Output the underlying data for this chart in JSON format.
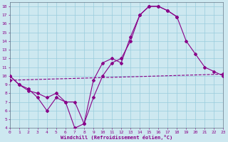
{
  "bg_color": "#cde8f0",
  "grid_color": "#99ccdd",
  "line_color": "#880088",
  "xlabel": "Windchill (Refroidissement éolien,°C)",
  "xlim": [
    0,
    23
  ],
  "ylim": [
    4,
    18.5
  ],
  "xticks": [
    0,
    1,
    2,
    3,
    4,
    5,
    6,
    7,
    8,
    9,
    10,
    11,
    12,
    13,
    14,
    15,
    16,
    17,
    18,
    19,
    20,
    21,
    22,
    23
  ],
  "yticks": [
    4,
    5,
    6,
    7,
    8,
    9,
    10,
    11,
    12,
    13,
    14,
    15,
    16,
    17,
    18
  ],
  "line1_x": [
    0,
    1,
    2,
    3,
    4,
    5,
    6,
    7,
    8,
    9,
    10,
    11,
    12,
    13,
    14,
    15,
    16,
    17,
    18
  ],
  "line1_y": [
    10,
    9,
    8.5,
    7.5,
    6,
    7.5,
    7,
    4,
    4.5,
    9.5,
    11.5,
    12,
    11.5,
    14.5,
    17,
    18,
    18,
    17.5,
    16.8
  ],
  "line2_x": [
    0,
    1,
    2,
    3,
    4,
    5,
    6,
    7,
    8,
    9,
    10,
    11,
    12,
    13,
    14,
    15,
    16,
    17,
    18,
    19,
    20,
    21,
    22,
    23
  ],
  "line2_y": [
    10,
    9.0,
    8.3,
    8.0,
    7.5,
    8.0,
    7.0,
    7.0,
    4.5,
    7.5,
    10,
    11.5,
    12,
    14,
    17,
    18,
    18,
    17.5,
    16.8,
    14,
    12.5,
    11,
    10.5,
    10
  ],
  "line3_x": [
    0,
    23
  ],
  "line3_y": [
    9.5,
    10.2
  ],
  "markersize": 2.0,
  "linewidth": 0.8,
  "tick_fontsize": 4.5,
  "xlabel_fontsize": 5.0
}
